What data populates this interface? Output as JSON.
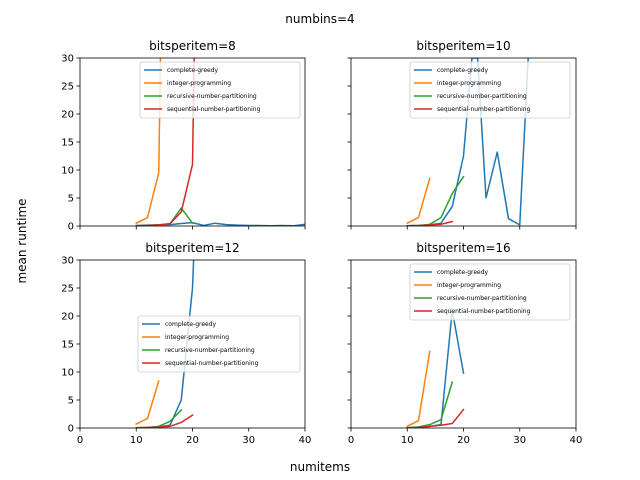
{
  "figure": {
    "suptitle": "numbins=4",
    "xlabel": "numitems",
    "ylabel": "mean runtime"
  },
  "chart_data": [
    {
      "type": "line",
      "title": "bitsperitem=8",
      "xlim": [
        0,
        40
      ],
      "ylim": [
        0,
        30
      ],
      "xticks": [
        0,
        10,
        20,
        30,
        40
      ],
      "yticks": [
        0,
        5,
        10,
        15,
        20,
        25,
        30
      ],
      "show_x_ticklabels": false,
      "show_y_ticklabels": true,
      "legend": "top-right",
      "series": [
        {
          "name": "complete-greedy",
          "color": "#1f77b4",
          "x": [
            10,
            12,
            14,
            16,
            18,
            20,
            22,
            24,
            26,
            28,
            30,
            32,
            34,
            36,
            38,
            40
          ],
          "y": [
            0.1,
            0.15,
            0.2,
            0.25,
            0.45,
            0.6,
            0.1,
            0.5,
            0.25,
            0.15,
            0.1,
            0.1,
            0.05,
            0.1,
            0.05,
            0.3
          ]
        },
        {
          "name": "integer-programming",
          "color": "#ff7f0e",
          "x": [
            10,
            12,
            14,
            14.3
          ],
          "y": [
            0.5,
            1.5,
            9.5,
            30
          ]
        },
        {
          "name": "recursive-number-partitioning",
          "color": "#2ca02c",
          "x": [
            10,
            12,
            14,
            16,
            18,
            20
          ],
          "y": [
            0.05,
            0.1,
            0.2,
            0.4,
            3.2,
            0.5
          ]
        },
        {
          "name": "sequential-number-partitioning",
          "color": "#d62728",
          "x": [
            10,
            12,
            14,
            16,
            18,
            20,
            20.3
          ],
          "y": [
            0.05,
            0.1,
            0.2,
            0.4,
            2.5,
            11,
            30
          ]
        }
      ]
    },
    {
      "type": "line",
      "title": "bitsperitem=10",
      "xlim": [
        0,
        40
      ],
      "ylim": [
        0,
        30
      ],
      "xticks": [
        0,
        10,
        20,
        30,
        40
      ],
      "yticks": [
        0,
        5,
        10,
        15,
        20,
        25,
        30
      ],
      "show_x_ticklabels": false,
      "show_y_ticklabels": false,
      "legend": "top-right",
      "series": [
        {
          "name": "complete-greedy",
          "color": "#1f77b4",
          "x": [
            10,
            12,
            14,
            16,
            18,
            20,
            21.5,
            22.5,
            24,
            26,
            28,
            30,
            31.5
          ],
          "y": [
            0.05,
            0.1,
            0.2,
            0.5,
            3.5,
            12.5,
            30,
            30,
            5,
            13.2,
            1.3,
            0.2,
            30
          ]
        },
        {
          "name": "integer-programming",
          "color": "#ff7f0e",
          "x": [
            10,
            12,
            14
          ],
          "y": [
            0.5,
            1.5,
            8.5
          ]
        },
        {
          "name": "recursive-number-partitioning",
          "color": "#2ca02c",
          "x": [
            10,
            12,
            14,
            16,
            18,
            20
          ],
          "y": [
            0.05,
            0.1,
            0.3,
            1.5,
            5.8,
            8.8
          ]
        },
        {
          "name": "sequential-number-partitioning",
          "color": "#d62728",
          "x": [
            10,
            12,
            14,
            16,
            18
          ],
          "y": [
            0.05,
            0.1,
            0.2,
            0.3,
            0.8
          ]
        }
      ]
    },
    {
      "type": "line",
      "title": "bitsperitem=12",
      "xlim": [
        0,
        40
      ],
      "ylim": [
        0,
        30
      ],
      "xticks": [
        0,
        10,
        20,
        30,
        40
      ],
      "yticks": [
        0,
        5,
        10,
        15,
        20,
        25,
        30
      ],
      "show_x_ticklabels": true,
      "show_y_ticklabels": true,
      "legend": "center-right",
      "series": [
        {
          "name": "complete-greedy",
          "color": "#1f77b4",
          "x": [
            10,
            12,
            14,
            16,
            18,
            20,
            20.2
          ],
          "y": [
            0.05,
            0.1,
            0.2,
            0.5,
            5,
            25,
            30
          ]
        },
        {
          "name": "integer-programming",
          "color": "#ff7f0e",
          "x": [
            10,
            12,
            14
          ],
          "y": [
            0.7,
            1.7,
            8.4
          ]
        },
        {
          "name": "recursive-number-partitioning",
          "color": "#2ca02c",
          "x": [
            10,
            12,
            14,
            16,
            18
          ],
          "y": [
            0.05,
            0.1,
            0.3,
            1.2,
            3.2
          ]
        },
        {
          "name": "sequential-number-partitioning",
          "color": "#d62728",
          "x": [
            10,
            12,
            14,
            16,
            18,
            20
          ],
          "y": [
            0.05,
            0.1,
            0.15,
            0.3,
            1.0,
            2.3
          ]
        }
      ]
    },
    {
      "type": "line",
      "title": "bitsperitem=16",
      "xlim": [
        0,
        40
      ],
      "ylim": [
        0,
        30
      ],
      "xticks": [
        0,
        10,
        20,
        30,
        40
      ],
      "yticks": [
        0,
        5,
        10,
        15,
        20,
        25,
        30
      ],
      "show_x_ticklabels": true,
      "show_y_ticklabels": false,
      "legend": "top-right",
      "series": [
        {
          "name": "complete-greedy",
          "color": "#1f77b4",
          "x": [
            10,
            12,
            14,
            16,
            18,
            20
          ],
          "y": [
            0.05,
            0.1,
            0.3,
            0.6,
            21,
            9.8
          ]
        },
        {
          "name": "integer-programming",
          "color": "#ff7f0e",
          "x": [
            10,
            12,
            14
          ],
          "y": [
            0.3,
            1.3,
            13.7
          ]
        },
        {
          "name": "recursive-number-partitioning",
          "color": "#2ca02c",
          "x": [
            10,
            12,
            14,
            16,
            18
          ],
          "y": [
            0.05,
            0.2,
            0.6,
            1.5,
            8.2
          ]
        },
        {
          "name": "sequential-number-partitioning",
          "color": "#d62728",
          "x": [
            10,
            12,
            14,
            16,
            18,
            20
          ],
          "y": [
            0.05,
            0.1,
            0.3,
            0.5,
            0.8,
            3.3
          ]
        }
      ]
    }
  ]
}
